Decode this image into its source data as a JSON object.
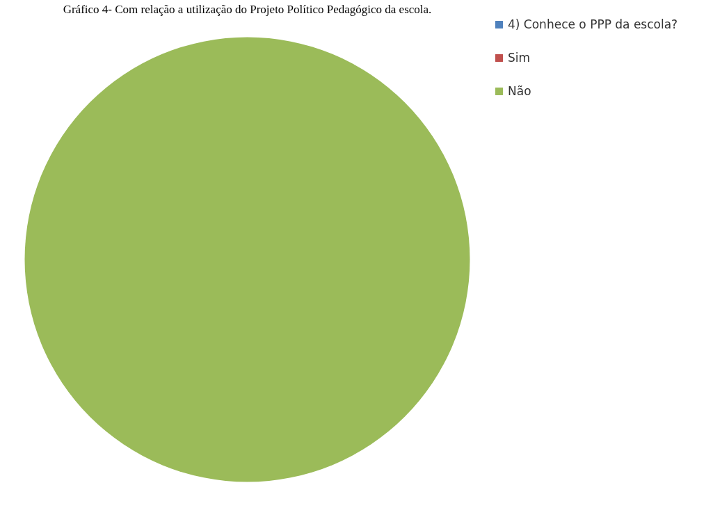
{
  "chart_data": {
    "type": "pie",
    "title": "Gráfico 4- Com relação a utilização do Projeto Político Pedagógico da escola.",
    "categories": [
      "4) Conhece o PPP da escola?",
      "Sim",
      "Não"
    ],
    "values": [
      0,
      0,
      100
    ],
    "colors": [
      "#4f81bd",
      "#c0504d",
      "#9bbb59"
    ],
    "legend": "right"
  }
}
